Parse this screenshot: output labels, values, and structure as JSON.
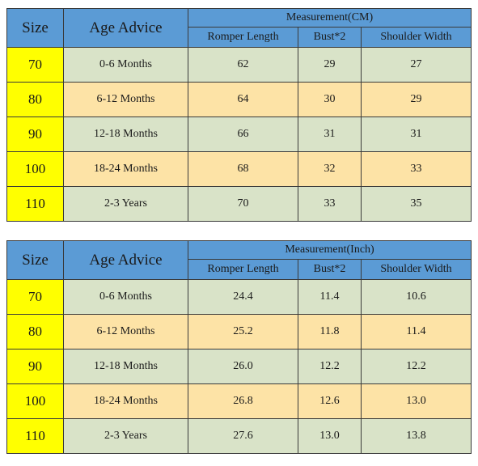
{
  "tables": [
    {
      "unit_header": "Measurement(CM)",
      "size_header": "Size",
      "age_header": "Age Advice",
      "columns": [
        "Romper Length",
        "Bust*2",
        "Shoulder Width"
      ],
      "rows": [
        {
          "size": "70",
          "age": "0-6 Months",
          "romper": "62",
          "bust": "29",
          "shoulder": "27"
        },
        {
          "size": "80",
          "age": "6-12 Months",
          "romper": "64",
          "bust": "30",
          "shoulder": "29"
        },
        {
          "size": "90",
          "age": "12-18 Months",
          "romper": "66",
          "bust": "31",
          "shoulder": "31"
        },
        {
          "size": "100",
          "age": "18-24 Months",
          "romper": "68",
          "bust": "32",
          "shoulder": "33"
        },
        {
          "size": "110",
          "age": "2-3 Years",
          "romper": "70",
          "bust": "33",
          "shoulder": "35"
        }
      ]
    },
    {
      "unit_header": "Measurement(Inch)",
      "size_header": "Size",
      "age_header": "Age Advice",
      "columns": [
        "Romper Length",
        "Bust*2",
        "Shoulder Width"
      ],
      "rows": [
        {
          "size": "70",
          "age": "0-6 Months",
          "romper": "24.4",
          "bust": "11.4",
          "shoulder": "10.6"
        },
        {
          "size": "80",
          "age": "6-12 Months",
          "romper": "25.2",
          "bust": "11.8",
          "shoulder": "11.4"
        },
        {
          "size": "90",
          "age": "12-18 Months",
          "romper": "26.0",
          "bust": "12.2",
          "shoulder": "12.2"
        },
        {
          "size": "100",
          "age": "18-24 Months",
          "romper": "26.8",
          "bust": "12.6",
          "shoulder": "13.0"
        },
        {
          "size": "110",
          "age": "2-3 Years",
          "romper": "27.6",
          "bust": "13.0",
          "shoulder": "13.8"
        }
      ]
    }
  ],
  "colors": {
    "header_blue": "#5b9bd5",
    "size_yellow": "#ffff00",
    "row_green": "#d9e3c8",
    "row_orange": "#fde3a6"
  }
}
